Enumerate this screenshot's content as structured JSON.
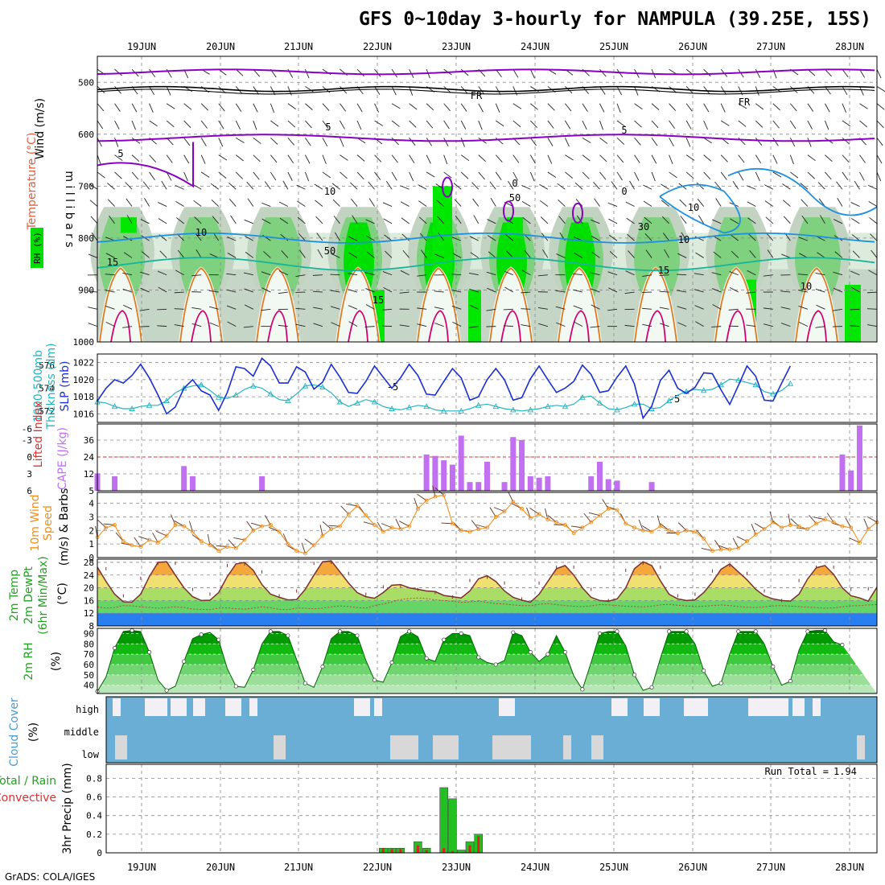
{
  "title": "GFS 0~10day 3-hourly for NAMPULA (39.25E, 15S)",
  "credit": "GrADS: COLA/IGES",
  "colors": {
    "rh": "#00dd00",
    "rh2m": "#00aa00",
    "slp": "#1a2fd0",
    "thick": "#22b5c0",
    "cape": "#c070f0",
    "wind": "#f09020",
    "temp_lo": "#00cc00",
    "temp_hi": "#ffcc44",
    "temp_top": "#ff8800",
    "dewpt_fill": "#2a7ff0",
    "cloud_bg": "#6aaed6",
    "cloud": "#f2f0f4",
    "precip_total": "#22c022",
    "precip_conv": "#e02020",
    "contour_t": "#8a00c0",
    "contour_w": "#1e90e0"
  },
  "chart_data": [
    {
      "type": "contour",
      "id": "profile",
      "x_dates": [
        "19JUN",
        "20JUN",
        "21JUN",
        "22JUN",
        "23JUN",
        "24JUN",
        "25JUN",
        "26JUN",
        "27JUN",
        "28JUN"
      ],
      "ylabel": "m i l l i b a r s",
      "side_labels": [
        "Wind (m/s)",
        "Temperature (°C)",
        "RH (%)"
      ],
      "y_ticks": [
        "500",
        "600",
        "700",
        "800",
        "900",
        "1000"
      ],
      "ylim": [
        1000,
        450
      ],
      "contour_labels": [
        "-5",
        "-5",
        "5",
        "5",
        "5",
        "FR",
        "FR",
        "0",
        "0",
        "10",
        "10",
        "15",
        "15",
        "15",
        "10",
        "10",
        "30",
        "50",
        "50",
        "10"
      ]
    },
    {
      "type": "line",
      "id": "slp_thick",
      "side_labels": [
        "1000-500mb",
        "Thickness (dm)",
        "SLP (mb)"
      ],
      "left_ticks": [
        "572",
        "574",
        "576"
      ],
      "right_ticks": [
        "1016",
        "1018",
        "1020",
        "1022"
      ],
      "series": [
        {
          "name": "SLP (mb)",
          "values": [
            1017.5,
            1019,
            1020,
            1019.6,
            1020.5,
            1021.8,
            1020.2,
            1018.2,
            1016,
            1016.8,
            1019,
            1020,
            1018.7,
            1018.2,
            1016.4,
            1018.5,
            1021.5,
            1021.3,
            1020.4,
            1022.5,
            1021.6,
            1019.6,
            1019.6,
            1021.5,
            1020.9,
            1018.9,
            1019.7,
            1021.8,
            1020.3,
            1018.5,
            1018.4,
            1019.8,
            1021.6,
            1020.3,
            1019,
            1020.2,
            1021.8,
            1020.5,
            1018.3,
            1018.2,
            1019.8,
            1021.3,
            1020.2,
            1017.6,
            1018,
            1020,
            1021.3,
            1020,
            1017.6,
            1017.9,
            1020.1,
            1021.6,
            1020,
            1018.5,
            1019,
            1019.8,
            1021.7,
            1020.6,
            1018.5,
            1018.7,
            1020.3,
            1021.6,
            1019.5,
            1015.5,
            1016.9,
            1019.9,
            1021.1,
            1019,
            1018.4,
            1019.1,
            1020.8,
            1020.7,
            1018.8,
            1017.1,
            1019.3,
            1021.6,
            1020.4,
            1017.6,
            1017.5,
            1019.6,
            1021.6
          ]
        },
        {
          "name": "1000-500mb Thickness (dm)",
          "values": [
            572.8,
            572.7,
            572.4,
            572.2,
            572.2,
            572.4,
            572.5,
            572.5,
            572.9,
            573.6,
            574,
            574.2,
            574.3,
            573.8,
            573.2,
            573.1,
            573.4,
            573.9,
            574.2,
            574,
            573.5,
            573,
            572.9,
            573.5,
            574.2,
            574.3,
            574.1,
            573.6,
            572.8,
            572.4,
            572.7,
            573,
            572.8,
            572.4,
            572.2,
            572.1,
            572.3,
            572.5,
            572.4,
            572.1,
            572,
            572,
            572,
            572.2,
            572.5,
            572.6,
            572.4,
            572.2,
            572.1,
            572,
            572.1,
            572.2,
            572.4,
            572.5,
            572.4,
            572.6,
            573.2,
            573.3,
            572.7,
            572.2,
            572.1,
            572.3,
            572.6,
            572.6,
            572.2,
            572.3,
            572.9,
            573.4,
            573.7,
            573.9,
            573.8,
            573.9,
            574.3,
            574.8,
            574.7,
            574.5,
            574.3,
            573.7,
            573.5,
            573.8,
            574.4
          ]
        }
      ]
    },
    {
      "type": "bar",
      "id": "cape",
      "side_labels": [
        "Lifted Index",
        "CAPE (J/kg)"
      ],
      "left_ticks": [
        "-6",
        "-3",
        "0",
        "3",
        "6"
      ],
      "right_ticks": [
        "36",
        "24",
        "12",
        "5"
      ],
      "values": [
        {
          "i": 0,
          "v": 12
        },
        {
          "i": 2,
          "v": 10
        },
        {
          "i": 10,
          "v": 17
        },
        {
          "i": 11,
          "v": 10
        },
        {
          "i": 19,
          "v": 10
        },
        {
          "i": 38,
          "v": 25
        },
        {
          "i": 39,
          "v": 24
        },
        {
          "i": 40,
          "v": 21
        },
        {
          "i": 41,
          "v": 18
        },
        {
          "i": 42,
          "v": 38
        },
        {
          "i": 43,
          "v": 6
        },
        {
          "i": 44,
          "v": 6
        },
        {
          "i": 45,
          "v": 20
        },
        {
          "i": 47,
          "v": 6
        },
        {
          "i": 48,
          "v": 37
        },
        {
          "i": 49,
          "v": 35
        },
        {
          "i": 50,
          "v": 10
        },
        {
          "i": 51,
          "v": 9
        },
        {
          "i": 52,
          "v": 10
        },
        {
          "i": 57,
          "v": 10
        },
        {
          "i": 58,
          "v": 20
        },
        {
          "i": 59,
          "v": 8
        },
        {
          "i": 60,
          "v": 7
        },
        {
          "i": 64,
          "v": 6
        },
        {
          "i": 86,
          "v": 25
        },
        {
          "i": 87,
          "v": 14
        },
        {
          "i": 88,
          "v": 45
        }
      ]
    },
    {
      "type": "line",
      "id": "wind10m",
      "side_labels": [
        "10m Wind",
        "Speed",
        "(m/s) & Barbs"
      ],
      "ticks": [
        "0",
        "1",
        "2",
        "3",
        "4"
      ],
      "ylim": [
        0,
        4.5
      ],
      "values": [
        1.5,
        2.2,
        2.4,
        1.2,
        0.9,
        0.8,
        1.3,
        1.1,
        1.6,
        2.4,
        2.3,
        1.9,
        1.2,
        0.9,
        0.5,
        0.8,
        0.7,
        1.3,
        2,
        2.3,
        2.4,
        1.9,
        1,
        0.5,
        0.3,
        0.9,
        1.6,
        2.1,
        2.3,
        3.2,
        3.8,
        3.1,
        2.4,
        1.9,
        2.2,
        2.1,
        2.3,
        3.6,
        4.2,
        4.5,
        4.6,
        2.5,
        2,
        1.9,
        2.1,
        2.2,
        3,
        3.4,
        4.1,
        3.6,
        2.9,
        3.2,
        2.8,
        2.6,
        2.4,
        1.8,
        2.2,
        2.6,
        3.1,
        3.6,
        3.5,
        2.5,
        2.2,
        2,
        1.9,
        2.3,
        2,
        1.8,
        2,
        1.9,
        1.4,
        0.5,
        0.6,
        0.6,
        0.7,
        1.2,
        1.7,
        2.1,
        2.6,
        2.2,
        2.4,
        2.3,
        2.1,
        2.5,
        2.8,
        2.6,
        2.3,
        2.2,
        1.1,
        2.1,
        2.6
      ]
    },
    {
      "type": "area",
      "id": "temp",
      "side_labels": [
        "2m Temp",
        "2m DewPt",
        "(6hr Min/Max)"
      ],
      "ticks": [
        "8",
        "12",
        "16",
        "20",
        "24",
        "28"
      ],
      "ylim": [
        8,
        29
      ],
      "temp": [
        26.5,
        22,
        18,
        15.6,
        15.5,
        18,
        23.5,
        28,
        28.2,
        24,
        20,
        17.2,
        16,
        16.1,
        18.5,
        23.5,
        27.5,
        28,
        25.5,
        21,
        18,
        17,
        16.2,
        16.3,
        19.5,
        24,
        28.2,
        28.5,
        25,
        21.5,
        18.5,
        17.2,
        16.7,
        18.5,
        20.8,
        21,
        20,
        19.5,
        19,
        18.8,
        17.6,
        17.2,
        16.8,
        19,
        22.8,
        23.8,
        22,
        19,
        17,
        16.1,
        15.5,
        18,
        22,
        26,
        27,
        24,
        20,
        17,
        16,
        15.8,
        16.5,
        20,
        26,
        28.2,
        27,
        22.2,
        18,
        16.5,
        16,
        16.2,
        18.5,
        21.8,
        25.8,
        27.5,
        25,
        22.5,
        19.5,
        17.5,
        16.5,
        16,
        15.8,
        18,
        22.8,
        26.3,
        27,
        24.2,
        20,
        17.5,
        16.8,
        15.8,
        20.2
      ],
      "dewpt": [
        14,
        13.6,
        13.8,
        14.4,
        14.3,
        14,
        13.8,
        13.6,
        13.8,
        14,
        13.8,
        13.3,
        13.2,
        13.1,
        13.6,
        13.7,
        13.4,
        13.3,
        13.6,
        14,
        13.7,
        13.2,
        13.1,
        13.6,
        13.6,
        13.4,
        13.6,
        14,
        14.3,
        14.1,
        13.8,
        13.6,
        14.4,
        14.9,
        15.6,
        16.3,
        16.6,
        16.8,
        16.6,
        16.2,
        16,
        15.8,
        15.4,
        15.6,
        15.8,
        15.4,
        15,
        14.9,
        14.6,
        14.4,
        14.4,
        14.8,
        15,
        14.7,
        14.4,
        14.2,
        14.1,
        14.3,
        14.7,
        14.6,
        14.4,
        14.2,
        14.1,
        14,
        14.2,
        14.6,
        14.8,
        14.5,
        14.3,
        14.1,
        14.2,
        14.4,
        14.6,
        14.4,
        14.1,
        13.9,
        13.8,
        14,
        14.3,
        14.4,
        14.2,
        14.1,
        13.9,
        13.8,
        13.6,
        13.7,
        14,
        14.3,
        14.4,
        14.6,
        14.7
      ]
    },
    {
      "type": "area",
      "id": "rh2m",
      "side_labels": [
        "2m RH",
        "(%)"
      ],
      "ticks": [
        "40",
        "50",
        "60",
        "70",
        "80",
        "90"
      ],
      "ylim": [
        32,
        95
      ],
      "values": [
        34,
        48,
        76,
        92,
        93,
        92,
        72,
        45,
        35,
        39,
        63,
        85,
        89,
        91,
        84,
        56,
        39,
        38,
        55,
        80,
        92,
        92,
        88,
        65,
        42,
        38,
        58,
        85,
        92,
        92,
        88,
        64,
        45,
        43,
        62,
        87,
        92,
        87,
        66,
        63,
        84,
        90,
        90,
        88,
        67,
        62,
        60,
        64,
        91,
        88,
        72,
        63,
        70,
        88,
        72,
        49,
        36,
        62,
        90,
        92,
        92,
        78,
        50,
        35,
        38,
        66,
        92,
        92,
        92,
        80,
        54,
        39,
        42,
        70,
        92,
        92,
        92,
        80,
        58,
        40,
        44,
        74,
        92,
        93,
        93,
        82,
        79
      ]
    },
    {
      "type": "bar",
      "id": "cloud",
      "side_labels": [
        "Cloud Cover",
        "(%)"
      ],
      "levels": [
        "high",
        "middle",
        "low"
      ],
      "note": "fractional cover per level"
    },
    {
      "type": "bar",
      "id": "precip",
      "side_labels": [
        "Total / Rain",
        "Convective",
        "3hr Precip (mm)"
      ],
      "ticks": [
        "0",
        "0.2",
        "0.4",
        "0.6",
        "0.8"
      ],
      "ylim": [
        0,
        0.95
      ],
      "run_total_label": "Run Total =",
      "run_total": "1.94",
      "total": [
        {
          "i": 33,
          "v": 0.05
        },
        {
          "i": 34,
          "v": 0.05
        },
        {
          "i": 35,
          "v": 0.05
        },
        {
          "i": 37,
          "v": 0.12
        },
        {
          "i": 38,
          "v": 0.05
        },
        {
          "i": 40,
          "v": 0.7
        },
        {
          "i": 41,
          "v": 0.58
        },
        {
          "i": 42,
          "v": 0.03
        },
        {
          "i": 43,
          "v": 0.12
        },
        {
          "i": 44,
          "v": 0.2
        }
      ],
      "convective": [
        {
          "i": 33,
          "v": 0.05
        },
        {
          "i": 34,
          "v": 0.04
        },
        {
          "i": 35,
          "v": 0.04
        },
        {
          "i": 37,
          "v": 0.08
        },
        {
          "i": 38,
          "v": 0.03
        },
        {
          "i": 40,
          "v": 0.05
        },
        {
          "i": 41,
          "v": 0.02
        },
        {
          "i": 43,
          "v": 0.08
        },
        {
          "i": 44,
          "v": 0.18
        }
      ]
    }
  ]
}
